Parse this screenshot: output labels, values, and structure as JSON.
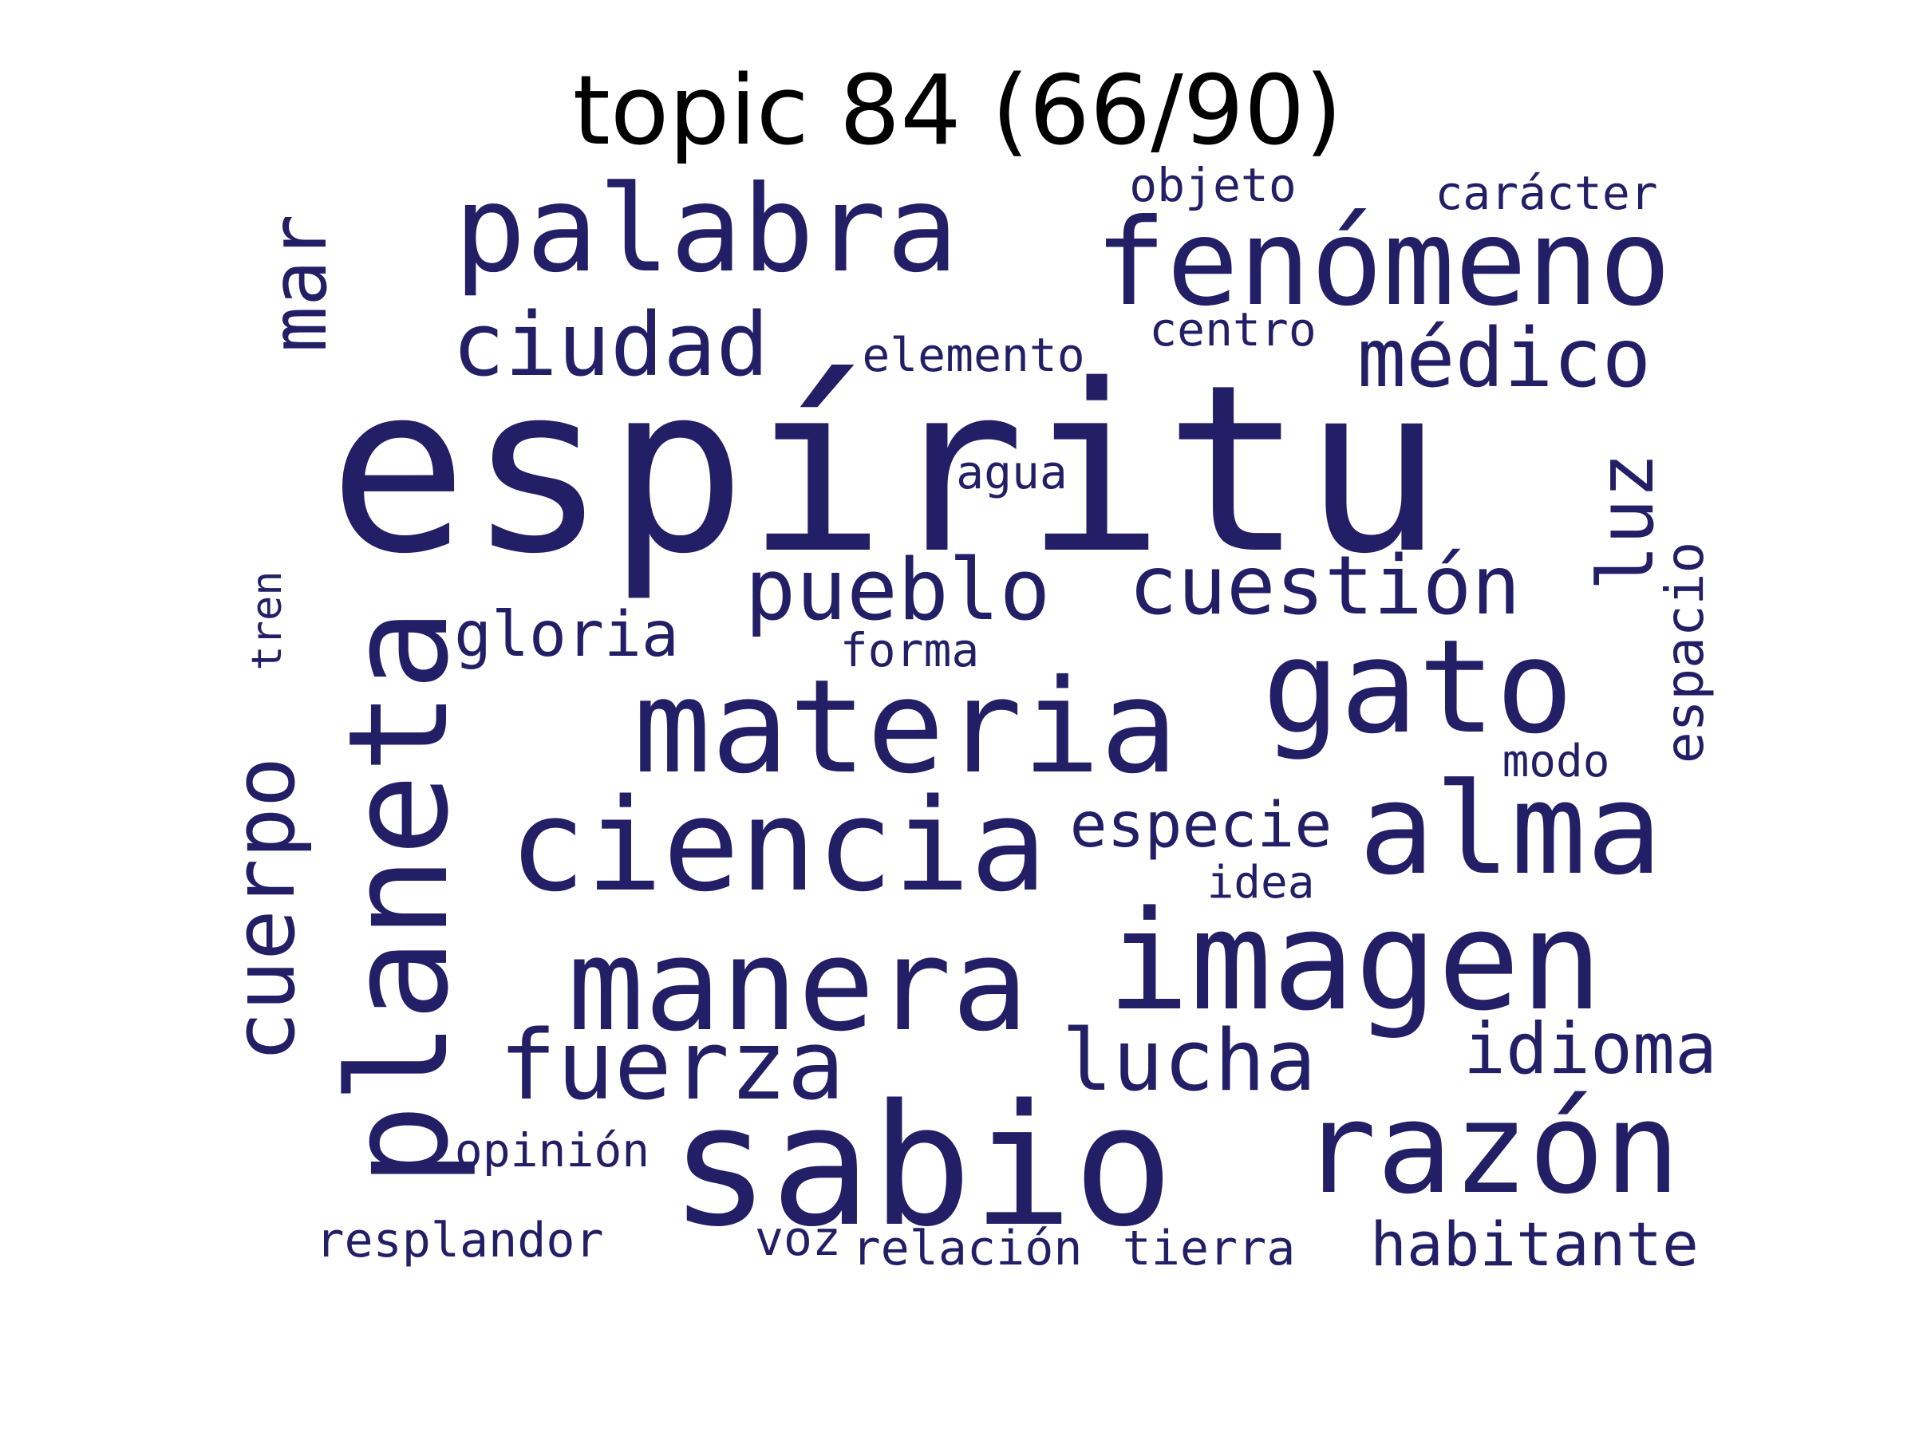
{
  "title": "topic 84 (66/90)",
  "word_color": "#231f66",
  "words": {
    "espiritu": "espíritu",
    "palabra": "palabra",
    "fenomeno": "fenómeno",
    "mar": "mar",
    "ciudad": "ciudad",
    "elemento": "elemento",
    "centro": "centro",
    "medico": "médico",
    "objeto": "objeto",
    "caracter": "carácter",
    "agua": "agua",
    "luz": "luz",
    "espacio": "espacio",
    "tren": "tren",
    "gloria": "gloria",
    "pueblo": "pueblo",
    "cuestion": "cuestión",
    "forma": "forma",
    "planeta": "planeta",
    "materia": "materia",
    "gato": "gato",
    "modo": "modo",
    "cuerpo": "cuerpo",
    "ciencia": "ciencia",
    "especie": "especie",
    "alma": "alma",
    "idea": "idea",
    "manera": "manera",
    "imagen": "imagen",
    "idioma": "idioma",
    "fuerza": "fuerza",
    "lucha": "lucha",
    "sabio": "sabio",
    "razon": "razón",
    "opinion": "opinión",
    "resplandor": "resplandor",
    "voz": "voz",
    "relacion": "relación",
    "tierra": "tierra",
    "habitante": "habitante"
  }
}
